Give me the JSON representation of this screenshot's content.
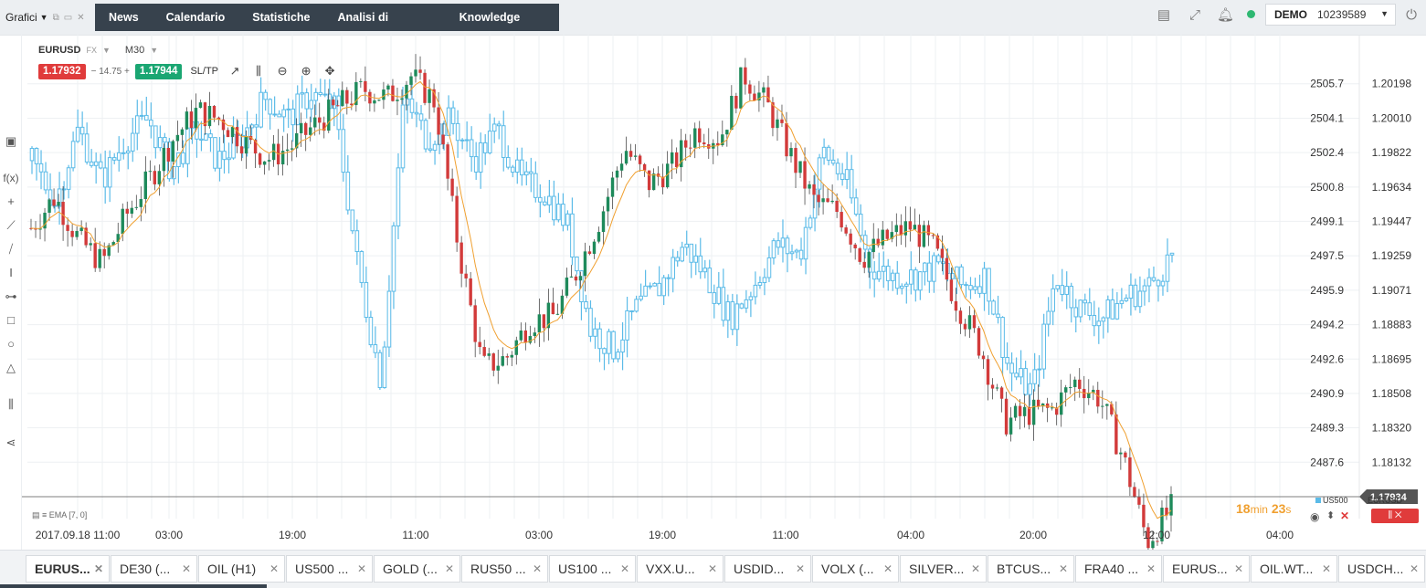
{
  "topbar": {
    "grafici_label": "Grafici",
    "nav_tabs": [
      "News",
      "Calendario",
      "Statistiche",
      "Analisi di mercato",
      "Knowledge base"
    ],
    "icons": [
      "layout-icon",
      "fullscreen-icon",
      "bell-icon",
      "power-icon"
    ],
    "account_mode": "DEMO",
    "account_number": "10239589",
    "status_color": "#2eb872"
  },
  "symbol": {
    "name": "EURUSD",
    "type": "FX",
    "timeframe": "M30"
  },
  "trade": {
    "bid": "1.17932",
    "spread": "14.75",
    "ask": "1.17944",
    "sltp": "SL/TP"
  },
  "indicator_label": "EMA [7, 0]",
  "countdown": {
    "minutes": "18",
    "min_unit": "min",
    "seconds": "23",
    "sec_unit": "s"
  },
  "legend": {
    "us500": "US500",
    "eurusd": "EURUSD"
  },
  "colors": {
    "bull": "#1e8a5b",
    "bear": "#d23a3a",
    "overlay": "#5bbbe8",
    "ema": "#f0a030",
    "grid": "#eef0f3"
  },
  "chart_data": {
    "type": "candlestick",
    "primary_series": "EURUSD",
    "overlay_series": "US500",
    "x_tick_labels": [
      "2017.09.18 11:00",
      "03:00",
      "19:00",
      "11:00",
      "03:00",
      "19:00",
      "11:00",
      "04:00",
      "20:00",
      "12:00",
      "04:00"
    ],
    "y_left_tick_labels": [
      "2505.7",
      "2504.1",
      "2502.4",
      "2500.8",
      "2499.1",
      "2497.5",
      "2495.9",
      "2494.2",
      "2492.6",
      "2490.9",
      "2489.3",
      "2487.6"
    ],
    "y_right_tick_labels": [
      "1.20198",
      "1.20010",
      "1.19822",
      "1.19634",
      "1.19447",
      "1.19259",
      "1.19071",
      "1.18883",
      "1.18695",
      "1.18508",
      "1.18320",
      "1.18132"
    ],
    "y_left_range": [
      2486.0,
      2507.3
    ],
    "y_right_range": [
      1.17944,
      1.20386
    ],
    "current_price": "1.17934",
    "ema_period": 7,
    "eurusd_close_profile": [
      1.1941,
      1.1958,
      1.1935,
      1.1922,
      1.1948,
      1.1968,
      1.199,
      1.2005,
      1.2,
      1.1988,
      1.1979,
      1.1986,
      1.1998,
      1.2008,
      1.2017,
      1.2012,
      1.2024,
      1.201,
      1.193,
      1.1865,
      1.187,
      1.189,
      1.1893,
      1.1918,
      1.1948,
      1.1985,
      1.1965,
      1.1975,
      1.1995,
      1.199,
      1.2025,
      1.2008,
      1.198,
      1.1955,
      1.195,
      1.1925,
      1.1935,
      1.1942,
      1.193,
      1.19,
      1.1875,
      1.1835,
      1.184,
      1.1842,
      1.1858,
      1.1848,
      1.1815,
      1.177,
      1.1788
    ],
    "us500_close_profile": [
      2502.0,
      2500.0,
      2503.5,
      2501.0,
      2503.0,
      2504.0,
      2501.5,
      2503.5,
      2502.0,
      2503.0,
      2505.0,
      2504.0,
      2505.2,
      2504.5,
      2497.0,
      2491.5,
      2505.0,
      2503.0,
      2504.0,
      2502.0,
      2503.5,
      2501.0,
      2500.5,
      2499.0,
      2494.0,
      2493.0,
      2495.0,
      2496.0,
      2498.0,
      2496.5,
      2494.5,
      2496.0,
      2498.0,
      2497.5,
      2502.5,
      2501.0,
      2497.0,
      2496.5,
      2496.5,
      2497.0,
      2496.0,
      2496.5,
      2492.0,
      2491.0,
      2496.5,
      2495.0,
      2494.5,
      2495.5,
      2496.0,
      2497.5
    ]
  },
  "bottom_tabs": [
    "EURUS...",
    "DE30 (...",
    "OIL (H1)",
    "US500 ...",
    "GOLD (...",
    "RUS50 ...",
    "US100 ...",
    "VXX.U...",
    "USDID...",
    "VOLX (...",
    "SILVER...",
    "BTCUS...",
    "FRA40 ...",
    "EURUS...",
    "OIL.WT...",
    "USDCH..."
  ]
}
